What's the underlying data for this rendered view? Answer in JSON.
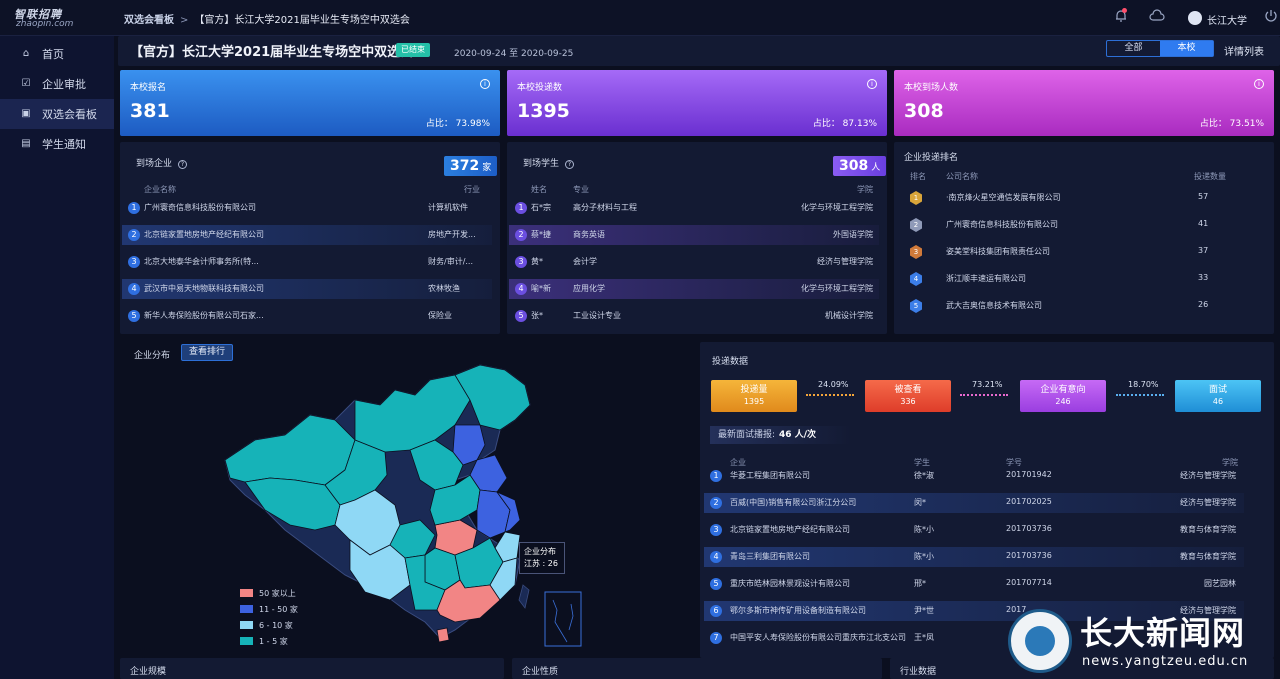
{
  "logo": {
    "text": "智联招聘",
    "sub": "zhaopin.com"
  },
  "breadcrumb": {
    "first": "双选会看板",
    "sep": ">",
    "current": "【官方】长江大学2021届毕业生专场空中双选会"
  },
  "user": {
    "name": "长江大学"
  },
  "sidebar": {
    "items": [
      {
        "label": "首页",
        "icon": "home-icon",
        "glyph": "⌂"
      },
      {
        "label": "企业审批",
        "icon": "approve-icon",
        "glyph": "☑"
      },
      {
        "label": "双选会看板",
        "icon": "dashboard-icon",
        "glyph": "▣"
      },
      {
        "label": "学生通知",
        "icon": "notice-icon",
        "glyph": "▤"
      }
    ]
  },
  "header": {
    "title": "【官方】长江大学2021届毕业生专场空中双选会",
    "status": "已结束",
    "date_range": "2020-09-24 至 2020-09-25",
    "toggle": [
      "全部",
      "本校"
    ],
    "detail": "详情列表"
  },
  "stats": [
    {
      "title": "本校报名",
      "value": "381",
      "ratio": "占比： 73.98%"
    },
    {
      "title": "本校投递数",
      "value": "1395",
      "ratio": "占比： 87.13%"
    },
    {
      "title": "本校到场人数",
      "value": "308",
      "ratio": "占比： 73.51%"
    }
  ],
  "companies_arrived": {
    "title": "到场企业",
    "count": "372",
    "unit": "家",
    "headers": [
      "企业名称",
      "行业"
    ],
    "rows": [
      {
        "no": "1",
        "name": "广州寰奇信息科技股份有限公司",
        "industry": "计算机软件"
      },
      {
        "no": "2",
        "name": "北京链家置地房地产经纪有限公司",
        "industry": "房地产开发..."
      },
      {
        "no": "3",
        "name": "北京大地泰华会计师事务所(特...",
        "industry": "财务/审计/..."
      },
      {
        "no": "4",
        "name": "武汉市中易天地物联科技有限公司",
        "industry": "农林牧渔"
      },
      {
        "no": "5",
        "name": "新华人寿保险股份有限公司石家...",
        "industry": "保险业"
      }
    ]
  },
  "students_arrived": {
    "title": "到场学生",
    "count": "308",
    "unit": "人",
    "headers": [
      "姓名",
      "专业",
      "学院"
    ],
    "rows": [
      {
        "no": "1",
        "name": "石*宗",
        "major": "高分子材料与工程",
        "college": "化学与环境工程学院"
      },
      {
        "no": "2",
        "name": "蔡*捷",
        "major": "商务英语",
        "college": "外国语学院"
      },
      {
        "no": "3",
        "name": "黄*",
        "major": "会计学",
        "college": "经济与管理学院"
      },
      {
        "no": "4",
        "name": "喻*新",
        "major": "应用化学",
        "college": "化学与环境工程学院"
      },
      {
        "no": "5",
        "name": "张*",
        "major": "工业设计专业",
        "college": "机械设计学院"
      }
    ]
  },
  "ranking": {
    "title": "企业投递排名",
    "headers": [
      "排名",
      "公司名称",
      "投递数量"
    ],
    "rows": [
      {
        "rank": "1",
        "name": "·南京烽火星空通信发展有限公司",
        "count": "57",
        "color": "#d9a53a"
      },
      {
        "rank": "2",
        "name": "广州寰奇信息科技股份有限公司",
        "count": "41",
        "color": "#8f9ab8"
      },
      {
        "rank": "3",
        "name": "姿美堂科技集团有限责任公司",
        "count": "37",
        "color": "#d07a3a"
      },
      {
        "rank": "4",
        "name": "浙江顺丰速运有限公司",
        "count": "33",
        "color": "#3c7ee8"
      },
      {
        "rank": "5",
        "name": "武大吉奥信息技术有限公司",
        "count": "26",
        "color": "#3c7ee8"
      }
    ]
  },
  "map": {
    "title": "企业分布",
    "rank_button": "查看排行",
    "legend": [
      {
        "label": "50 家以上",
        "color": "#f28585"
      },
      {
        "label": "11 - 50 家",
        "color": "#3d62e0"
      },
      {
        "label": "6 - 10 家",
        "color": "#8fd8f5"
      },
      {
        "label": "1 - 5 家",
        "color": "#16b3b8"
      }
    ],
    "tooltip_title": "企业分布",
    "tooltip_value": "江苏 : 26"
  },
  "funnel": {
    "title": "投递数据",
    "stages": [
      {
        "label": "投递量",
        "value": "1395"
      },
      {
        "label": "被查看",
        "value": "336"
      },
      {
        "label": "企业有意向",
        "value": "246"
      },
      {
        "label": "面试",
        "value": "46"
      }
    ],
    "rates": [
      "24.09%",
      "73.21%",
      "18.70%"
    ],
    "latest_label": "最新面试播报:",
    "latest_value": "46 人/次",
    "headers": [
      "企业",
      "学生",
      "学号",
      "学院"
    ],
    "rows": [
      {
        "no": "1",
        "company": "华菱工程集团有限公司",
        "student": "徐*淑",
        "id": "201701942",
        "college": "经济与管理学院"
      },
      {
        "no": "2",
        "company": "百威(中国)销售有限公司浙江分公司",
        "student": "闵*",
        "id": "201702025",
        "college": "经济与管理学院"
      },
      {
        "no": "3",
        "company": "北京链家置地房地产经纪有限公司",
        "student": "陈*小",
        "id": "201703736",
        "college": "教育与体育学院"
      },
      {
        "no": "4",
        "company": "青岛三利集团有限公司",
        "student": "陈*小",
        "id": "201703736",
        "college": "教育与体育学院"
      },
      {
        "no": "5",
        "company": "重庆市皓林园林景观设计有限公司",
        "student": "邢*",
        "id": "201707714",
        "college": "园艺园林"
      },
      {
        "no": "6",
        "company": "鄂尔多斯市神传矿用设备制造有限公司",
        "student": "尹*世",
        "id": "2017",
        "college": "经济与管理学院"
      },
      {
        "no": "7",
        "company": "中国平安人寿保险股份有限公司重庆市江北支公司",
        "student": "王*凤",
        "id": "",
        "college": ""
      }
    ]
  },
  "bottom": [
    "企业规模",
    "企业性质",
    "行业数据"
  ],
  "watermark": {
    "title": "长大新闻网",
    "url": "news.yangtzeu.edu.cn"
  }
}
